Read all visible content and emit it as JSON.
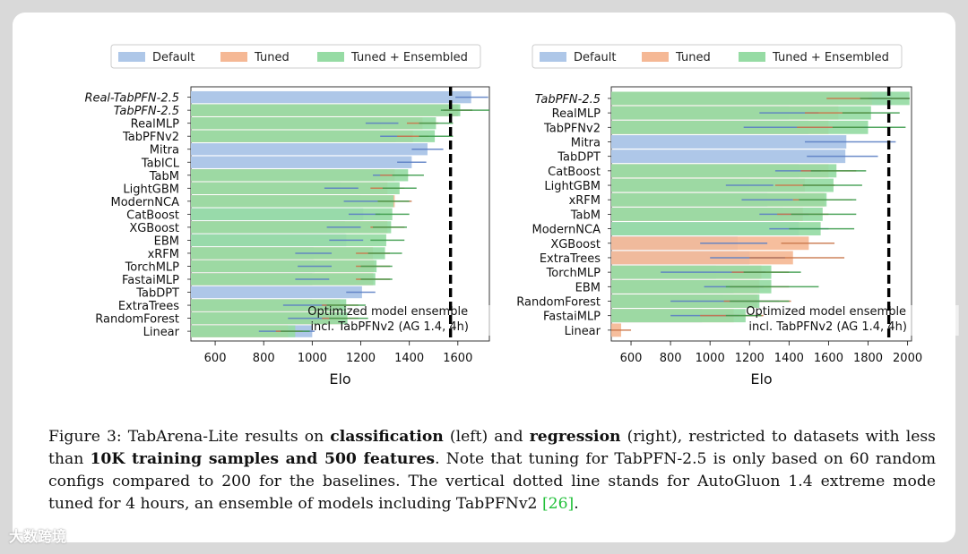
{
  "legend": [
    "Default",
    "Tuned",
    "Tuned + Ensembled"
  ],
  "colors": {
    "default": "#aec7e8",
    "tuned": "#f5b895",
    "ensembled": "#96dba4",
    "ci_default": "#5b7fc4",
    "ci_tuned": "#c9764a",
    "ci_ensembled": "#3f9d4e"
  },
  "chart_data": [
    {
      "type": "bar",
      "orientation": "horizontal",
      "panel": "classification",
      "xlabel": "Elo",
      "xticks": [
        600,
        800,
        1000,
        1200,
        1400,
        1600
      ],
      "xlim": [
        500,
        1730
      ],
      "reference_line": {
        "value": 1570,
        "label_line1": "Optimized model ensemble",
        "label_line2": "incl. TabPFNv2 (AG 1.4, 4h)"
      },
      "categories": [
        "Real-TabPFN-2.5",
        "TabPFN-2.5",
        "RealMLP",
        "TabPFNv2",
        "Mitra",
        "TabICL",
        "TabM",
        "LightGBM",
        "ModernNCA",
        "CatBoost",
        "XGBoost",
        "EBM",
        "xRFM",
        "TorchMLP",
        "FastaiMLP",
        "TabDPT",
        "ExtraTrees",
        "RandomForest",
        "Linear"
      ],
      "italic": [
        true,
        true,
        false,
        false,
        false,
        false,
        false,
        false,
        false,
        false,
        false,
        false,
        false,
        false,
        false,
        false,
        false,
        false,
        false
      ],
      "series": [
        {
          "name": "Default",
          "values": [
            1655,
            1600,
            1285,
            1345,
            1475,
            1410,
            1310,
            1120,
            1200,
            1210,
            1135,
            1140,
            1005,
            1010,
            1000,
            1205,
            1000,
            1000,
            1000
          ],
          "err": [
            [
              1590,
              1725
            ],
            [
              1540,
              1660
            ],
            [
              1220,
              1355
            ],
            [
              1280,
              1410
            ],
            [
              1410,
              1540
            ],
            [
              1350,
              1470
            ],
            [
              1250,
              1370
            ],
            [
              1050,
              1190
            ],
            [
              1130,
              1270
            ],
            [
              1150,
              1280
            ],
            [
              1060,
              1200
            ],
            [
              1070,
              1210
            ],
            [
              930,
              1080
            ],
            [
              940,
              1080
            ],
            [
              930,
              1070
            ],
            [
              1140,
              1260
            ],
            [
              880,
              1070
            ],
            [
              900,
              1080
            ],
            [
              780,
              1010
            ]
          ]
        },
        {
          "name": "Tuned",
          "values": [
            null,
            1600,
            1455,
            1415,
            null,
            null,
            1340,
            1310,
            1340,
            null,
            1310,
            null,
            1250,
            1255,
            1250,
            null,
            1115,
            1115,
            900
          ],
          "err": [
            null,
            [
              1540,
              1660
            ],
            [
              1390,
              1520
            ],
            [
              1350,
              1480
            ],
            null,
            null,
            [
              1280,
              1400
            ],
            [
              1240,
              1380
            ],
            [
              1270,
              1410
            ],
            null,
            [
              1240,
              1380
            ],
            null,
            [
              1180,
              1320
            ],
            [
              1180,
              1320
            ],
            [
              1180,
              1320
            ],
            null,
            [
              1040,
              1190
            ],
            [
              1040,
              1190
            ],
            [
              850,
              960
            ]
          ]
        },
        {
          "name": "Tuned + Ensembled",
          "values": [
            null,
            1610,
            1510,
            1505,
            null,
            null,
            1395,
            1360,
            1335,
            1330,
            1325,
            1305,
            1300,
            1265,
            1260,
            null,
            1140,
            1145,
            930
          ],
          "err": [
            null,
            [
              1530,
              1740
            ],
            [
              1440,
              1580
            ],
            [
              1440,
              1580
            ],
            null,
            null,
            [
              1330,
              1460
            ],
            [
              1290,
              1430
            ],
            [
              1270,
              1400
            ],
            [
              1260,
              1400
            ],
            [
              1250,
              1390
            ],
            [
              1240,
              1380
            ],
            [
              1230,
              1370
            ],
            [
              1200,
              1330
            ],
            [
              1200,
              1330
            ],
            null,
            [
              1060,
              1220
            ],
            [
              1070,
              1230
            ],
            [
              870,
              990
            ]
          ]
        }
      ]
    },
    {
      "type": "bar",
      "orientation": "horizontal",
      "panel": "regression",
      "xlabel": "Elo",
      "xticks": [
        600,
        800,
        1000,
        1200,
        1400,
        1600,
        1800,
        2000
      ],
      "xlim": [
        500,
        2020
      ],
      "reference_line": {
        "value": 1905,
        "label_line1": "Optimized model ensemble",
        "label_line2": "incl. TabPFNv2 (AG 1.4, 4h)"
      },
      "categories": [
        "TabPFN-2.5",
        "RealMLP",
        "TabPFNv2",
        "Mitra",
        "TabDPT",
        "CatBoost",
        "LightGBM",
        "xRFM",
        "TabM",
        "ModernNCA",
        "XGBoost",
        "ExtraTrees",
        "TorchMLP",
        "EBM",
        "RandomForest",
        "FastaiMLP",
        "Linear"
      ],
      "italic": [
        true,
        false,
        false,
        false,
        false,
        false,
        false,
        false,
        false,
        false,
        false,
        false,
        false,
        false,
        false,
        false,
        false
      ],
      "series": [
        {
          "name": "Default",
          "values": [
            1920,
            1400,
            1500,
            1690,
            1685,
            1450,
            1200,
            1290,
            1370,
            1450,
            1140,
            1200,
            1030,
            1120,
            1070,
            960,
            500
          ],
          "err": [
            [
              1800,
              2010
            ],
            [
              1250,
              1550
            ],
            [
              1170,
              1800
            ],
            [
              1480,
              1940
            ],
            [
              1490,
              1850
            ],
            [
              1330,
              1560
            ],
            [
              1080,
              1320
            ],
            [
              1160,
              1420
            ],
            [
              1250,
              1500
            ],
            [
              1300,
              1600
            ],
            [
              950,
              1290
            ],
            [
              1000,
              1380
            ],
            [
              750,
              1280
            ],
            [
              970,
              1270
            ],
            [
              800,
              1350
            ],
            [
              800,
              1150
            ],
            [
              500,
              500
            ]
          ]
        },
        {
          "name": "Tuned",
          "values": [
            1820,
            1650,
            1600,
            null,
            null,
            1600,
            1480,
            1580,
            1470,
            null,
            1500,
            1420,
            1260,
            1250,
            1240,
            1120,
            550
          ],
          "err": [
            [
              1590,
              2010
            ],
            [
              1480,
              1810
            ],
            [
              1440,
              1780
            ],
            null,
            null,
            [
              1460,
              1740
            ],
            [
              1330,
              1630
            ],
            [
              1420,
              1720
            ],
            [
              1340,
              1600
            ],
            null,
            [
              1360,
              1630
            ],
            [
              1200,
              1680
            ],
            [
              1110,
              1400
            ],
            [
              1100,
              1400
            ],
            [
              1070,
              1410
            ],
            [
              950,
              1270
            ],
            [
              500,
              600
            ]
          ]
        },
        {
          "name": "Tuned + Ensembled",
          "values": [
            2010,
            1815,
            1800,
            null,
            null,
            1640,
            1625,
            1590,
            1570,
            1560,
            null,
            null,
            1310,
            1310,
            1250,
            1180,
            null
          ],
          "err": [
            [
              1760,
              2010
            ],
            [
              1670,
              1960
            ],
            [
              1620,
              1990
            ],
            null,
            null,
            [
              1510,
              1790
            ],
            [
              1470,
              1770
            ],
            [
              1450,
              1740
            ],
            [
              1410,
              1740
            ],
            [
              1400,
              1730
            ],
            null,
            null,
            [
              1170,
              1460
            ],
            [
              1080,
              1550
            ],
            [
              1100,
              1400
            ],
            [
              1080,
              1260
            ],
            null
          ]
        }
      ]
    }
  ],
  "caption": {
    "p1": "Figure 3: TabArena-Lite results on ",
    "b1": "classification",
    "p2": " (left) and ",
    "b2": "regression",
    "p3": " (right), restricted to datasets with less than ",
    "b3": "10K training samples and 500 features",
    "p4": ". Note that tuning for TabPFN-2.5 is only based on 60 random configs compared to 200 for the baselines.  The vertical dotted line stands for AutoGluon 1.4 extreme mode tuned for 4 hours, an ensemble of models including TabPFNv2 ",
    "ref": "[26]",
    "p5": "."
  },
  "watermark": "大数跨境"
}
